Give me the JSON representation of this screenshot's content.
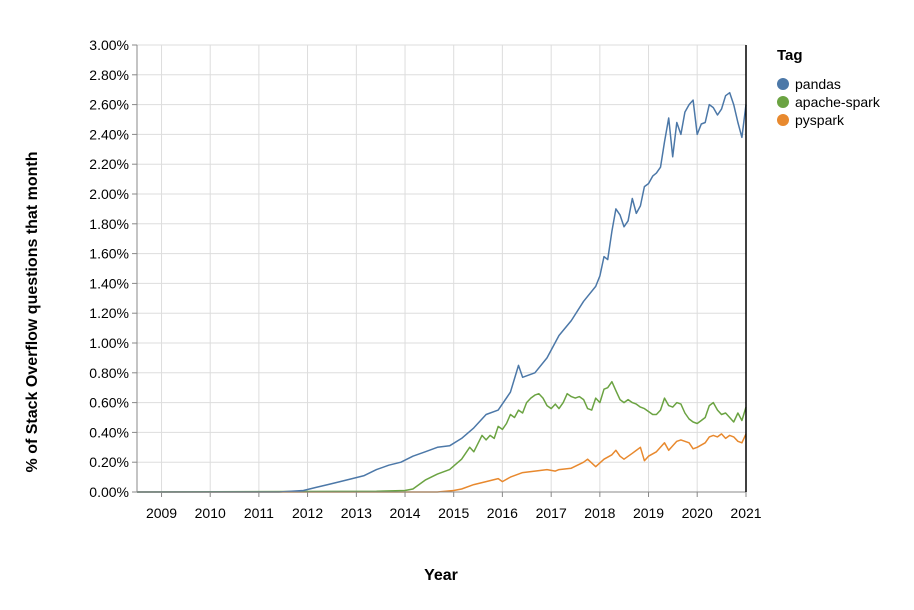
{
  "chart_data": {
    "type": "line",
    "xlabel": "Year",
    "ylabel": "% of Stack Overflow questions that month",
    "xlim": [
      "2008-07-01",
      "2021-01-01"
    ],
    "ylim": [
      0,
      3.0
    ],
    "x_ticks": [
      "2009",
      "2010",
      "2011",
      "2012",
      "2013",
      "2014",
      "2015",
      "2016",
      "2017",
      "2018",
      "2019",
      "2020",
      "2021"
    ],
    "y_ticks": [
      0,
      0.2,
      0.4,
      0.6,
      0.8,
      1.0,
      1.2,
      1.4,
      1.6,
      1.8,
      2.0,
      2.2,
      2.4,
      2.6,
      2.8,
      3.0
    ],
    "y_tick_labels": [
      "0.00%",
      "0.20%",
      "0.40%",
      "0.60%",
      "0.80%",
      "1.00%",
      "1.20%",
      "1.40%",
      "1.60%",
      "1.80%",
      "2.00%",
      "2.20%",
      "2.40%",
      "2.60%",
      "2.80%",
      "3.00%"
    ],
    "grid": true,
    "legend": {
      "title": "Tag",
      "placement": "top-right"
    },
    "series": [
      {
        "name": "pandas",
        "color": "#4c78a8",
        "points": [
          [
            "2008-07-01",
            0
          ],
          [
            "2011-06-01",
            0
          ],
          [
            "2011-12-01",
            0.01
          ],
          [
            "2012-03-01",
            0.03
          ],
          [
            "2012-06-01",
            0.05
          ],
          [
            "2012-09-01",
            0.07
          ],
          [
            "2012-12-01",
            0.09
          ],
          [
            "2013-03-01",
            0.11
          ],
          [
            "2013-06-01",
            0.15
          ],
          [
            "2013-09-01",
            0.18
          ],
          [
            "2013-12-01",
            0.2
          ],
          [
            "2014-03-01",
            0.24
          ],
          [
            "2014-06-01",
            0.27
          ],
          [
            "2014-09-01",
            0.3
          ],
          [
            "2014-12-01",
            0.31
          ],
          [
            "2015-03-01",
            0.36
          ],
          [
            "2015-06-01",
            0.43
          ],
          [
            "2015-09-01",
            0.52
          ],
          [
            "2015-12-01",
            0.55
          ],
          [
            "2016-03-01",
            0.67
          ],
          [
            "2016-05-01",
            0.85
          ],
          [
            "2016-06-01",
            0.77
          ],
          [
            "2016-09-01",
            0.8
          ],
          [
            "2016-12-01",
            0.9
          ],
          [
            "2017-03-01",
            1.05
          ],
          [
            "2017-06-01",
            1.15
          ],
          [
            "2017-09-01",
            1.28
          ],
          [
            "2017-12-01",
            1.38
          ],
          [
            "2018-01-01",
            1.45
          ],
          [
            "2018-02-01",
            1.58
          ],
          [
            "2018-03-01",
            1.56
          ],
          [
            "2018-04-01",
            1.75
          ],
          [
            "2018-05-01",
            1.9
          ],
          [
            "2018-06-01",
            1.86
          ],
          [
            "2018-07-01",
            1.78
          ],
          [
            "2018-08-01",
            1.82
          ],
          [
            "2018-09-01",
            1.97
          ],
          [
            "2018-10-01",
            1.87
          ],
          [
            "2018-11-01",
            1.92
          ],
          [
            "2018-12-01",
            2.05
          ],
          [
            "2019-01-01",
            2.07
          ],
          [
            "2019-02-01",
            2.12
          ],
          [
            "2019-03-01",
            2.14
          ],
          [
            "2019-04-01",
            2.18
          ],
          [
            "2019-05-01",
            2.35
          ],
          [
            "2019-06-01",
            2.51
          ],
          [
            "2019-07-01",
            2.25
          ],
          [
            "2019-08-01",
            2.48
          ],
          [
            "2019-09-01",
            2.4
          ],
          [
            "2019-10-01",
            2.55
          ],
          [
            "2019-11-01",
            2.6
          ],
          [
            "2019-12-01",
            2.63
          ],
          [
            "2020-01-01",
            2.4
          ],
          [
            "2020-02-01",
            2.47
          ],
          [
            "2020-03-01",
            2.48
          ],
          [
            "2020-04-01",
            2.6
          ],
          [
            "2020-05-01",
            2.58
          ],
          [
            "2020-06-01",
            2.53
          ],
          [
            "2020-07-01",
            2.57
          ],
          [
            "2020-08-01",
            2.66
          ],
          [
            "2020-09-01",
            2.68
          ],
          [
            "2020-10-01",
            2.6
          ],
          [
            "2020-11-01",
            2.48
          ],
          [
            "2020-12-01",
            2.38
          ],
          [
            "2021-01-01",
            2.6
          ]
        ]
      },
      {
        "name": "apache-spark",
        "color": "#6ba342",
        "points": [
          [
            "2008-07-01",
            0
          ],
          [
            "2013-06-01",
            0.005
          ],
          [
            "2014-01-01",
            0.01
          ],
          [
            "2014-03-01",
            0.02
          ],
          [
            "2014-06-01",
            0.08
          ],
          [
            "2014-09-01",
            0.12
          ],
          [
            "2014-12-01",
            0.15
          ],
          [
            "2015-03-01",
            0.22
          ],
          [
            "2015-05-01",
            0.3
          ],
          [
            "2015-06-01",
            0.27
          ],
          [
            "2015-08-01",
            0.38
          ],
          [
            "2015-09-01",
            0.35
          ],
          [
            "2015-10-01",
            0.38
          ],
          [
            "2015-11-01",
            0.36
          ],
          [
            "2015-12-01",
            0.44
          ],
          [
            "2016-01-01",
            0.42
          ],
          [
            "2016-02-01",
            0.46
          ],
          [
            "2016-03-01",
            0.52
          ],
          [
            "2016-04-01",
            0.5
          ],
          [
            "2016-05-01",
            0.55
          ],
          [
            "2016-06-01",
            0.53
          ],
          [
            "2016-07-01",
            0.6
          ],
          [
            "2016-08-01",
            0.63
          ],
          [
            "2016-09-01",
            0.65
          ],
          [
            "2016-10-01",
            0.66
          ],
          [
            "2016-11-01",
            0.63
          ],
          [
            "2016-12-01",
            0.58
          ],
          [
            "2017-01-01",
            0.56
          ],
          [
            "2017-02-01",
            0.59
          ],
          [
            "2017-03-01",
            0.56
          ],
          [
            "2017-04-01",
            0.6
          ],
          [
            "2017-05-01",
            0.66
          ],
          [
            "2017-06-01",
            0.64
          ],
          [
            "2017-07-01",
            0.63
          ],
          [
            "2017-08-01",
            0.64
          ],
          [
            "2017-09-01",
            0.62
          ],
          [
            "2017-10-01",
            0.56
          ],
          [
            "2017-11-01",
            0.55
          ],
          [
            "2017-12-01",
            0.63
          ],
          [
            "2018-01-01",
            0.6
          ],
          [
            "2018-02-01",
            0.69
          ],
          [
            "2018-03-01",
            0.7
          ],
          [
            "2018-04-01",
            0.74
          ],
          [
            "2018-05-01",
            0.68
          ],
          [
            "2018-06-01",
            0.62
          ],
          [
            "2018-07-01",
            0.6
          ],
          [
            "2018-08-01",
            0.62
          ],
          [
            "2018-09-01",
            0.6
          ],
          [
            "2018-10-01",
            0.59
          ],
          [
            "2018-11-01",
            0.57
          ],
          [
            "2018-12-01",
            0.56
          ],
          [
            "2019-01-01",
            0.54
          ],
          [
            "2019-02-01",
            0.52
          ],
          [
            "2019-03-01",
            0.52
          ],
          [
            "2019-04-01",
            0.55
          ],
          [
            "2019-05-01",
            0.63
          ],
          [
            "2019-06-01",
            0.58
          ],
          [
            "2019-07-01",
            0.57
          ],
          [
            "2019-08-01",
            0.6
          ],
          [
            "2019-09-01",
            0.59
          ],
          [
            "2019-10-01",
            0.53
          ],
          [
            "2019-11-01",
            0.49
          ],
          [
            "2019-12-01",
            0.47
          ],
          [
            "2020-01-01",
            0.46
          ],
          [
            "2020-02-01",
            0.48
          ],
          [
            "2020-03-01",
            0.5
          ],
          [
            "2020-04-01",
            0.58
          ],
          [
            "2020-05-01",
            0.6
          ],
          [
            "2020-06-01",
            0.55
          ],
          [
            "2020-07-01",
            0.52
          ],
          [
            "2020-08-01",
            0.53
          ],
          [
            "2020-09-01",
            0.5
          ],
          [
            "2020-10-01",
            0.47
          ],
          [
            "2020-11-01",
            0.53
          ],
          [
            "2020-12-01",
            0.48
          ],
          [
            "2021-01-01",
            0.57
          ]
        ]
      },
      {
        "name": "pyspark",
        "color": "#e8892e",
        "points": [
          [
            "2008-07-01",
            0
          ],
          [
            "2014-09-01",
            0
          ],
          [
            "2015-01-01",
            0.01
          ],
          [
            "2015-03-01",
            0.02
          ],
          [
            "2015-06-01",
            0.05
          ],
          [
            "2015-09-01",
            0.07
          ],
          [
            "2015-12-01",
            0.09
          ],
          [
            "2016-01-01",
            0.07
          ],
          [
            "2016-03-01",
            0.1
          ],
          [
            "2016-06-01",
            0.13
          ],
          [
            "2016-09-01",
            0.14
          ],
          [
            "2016-12-01",
            0.15
          ],
          [
            "2017-02-01",
            0.14
          ],
          [
            "2017-03-01",
            0.15
          ],
          [
            "2017-06-01",
            0.16
          ],
          [
            "2017-09-01",
            0.2
          ],
          [
            "2017-10-01",
            0.22
          ],
          [
            "2017-12-01",
            0.17
          ],
          [
            "2018-02-01",
            0.22
          ],
          [
            "2018-04-01",
            0.25
          ],
          [
            "2018-05-01",
            0.28
          ],
          [
            "2018-06-01",
            0.24
          ],
          [
            "2018-07-01",
            0.22
          ],
          [
            "2018-09-01",
            0.26
          ],
          [
            "2018-11-01",
            0.3
          ],
          [
            "2018-12-01",
            0.21
          ],
          [
            "2019-01-01",
            0.24
          ],
          [
            "2019-03-01",
            0.27
          ],
          [
            "2019-05-01",
            0.33
          ],
          [
            "2019-06-01",
            0.28
          ],
          [
            "2019-08-01",
            0.34
          ],
          [
            "2019-09-01",
            0.35
          ],
          [
            "2019-11-01",
            0.33
          ],
          [
            "2019-12-01",
            0.29
          ],
          [
            "2020-01-01",
            0.3
          ],
          [
            "2020-03-01",
            0.33
          ],
          [
            "2020-04-01",
            0.37
          ],
          [
            "2020-05-01",
            0.38
          ],
          [
            "2020-06-01",
            0.37
          ],
          [
            "2020-07-01",
            0.39
          ],
          [
            "2020-08-01",
            0.36
          ],
          [
            "2020-09-01",
            0.38
          ],
          [
            "2020-10-01",
            0.37
          ],
          [
            "2020-11-01",
            0.34
          ],
          [
            "2020-12-01",
            0.33
          ],
          [
            "2021-01-01",
            0.39
          ]
        ]
      }
    ]
  }
}
